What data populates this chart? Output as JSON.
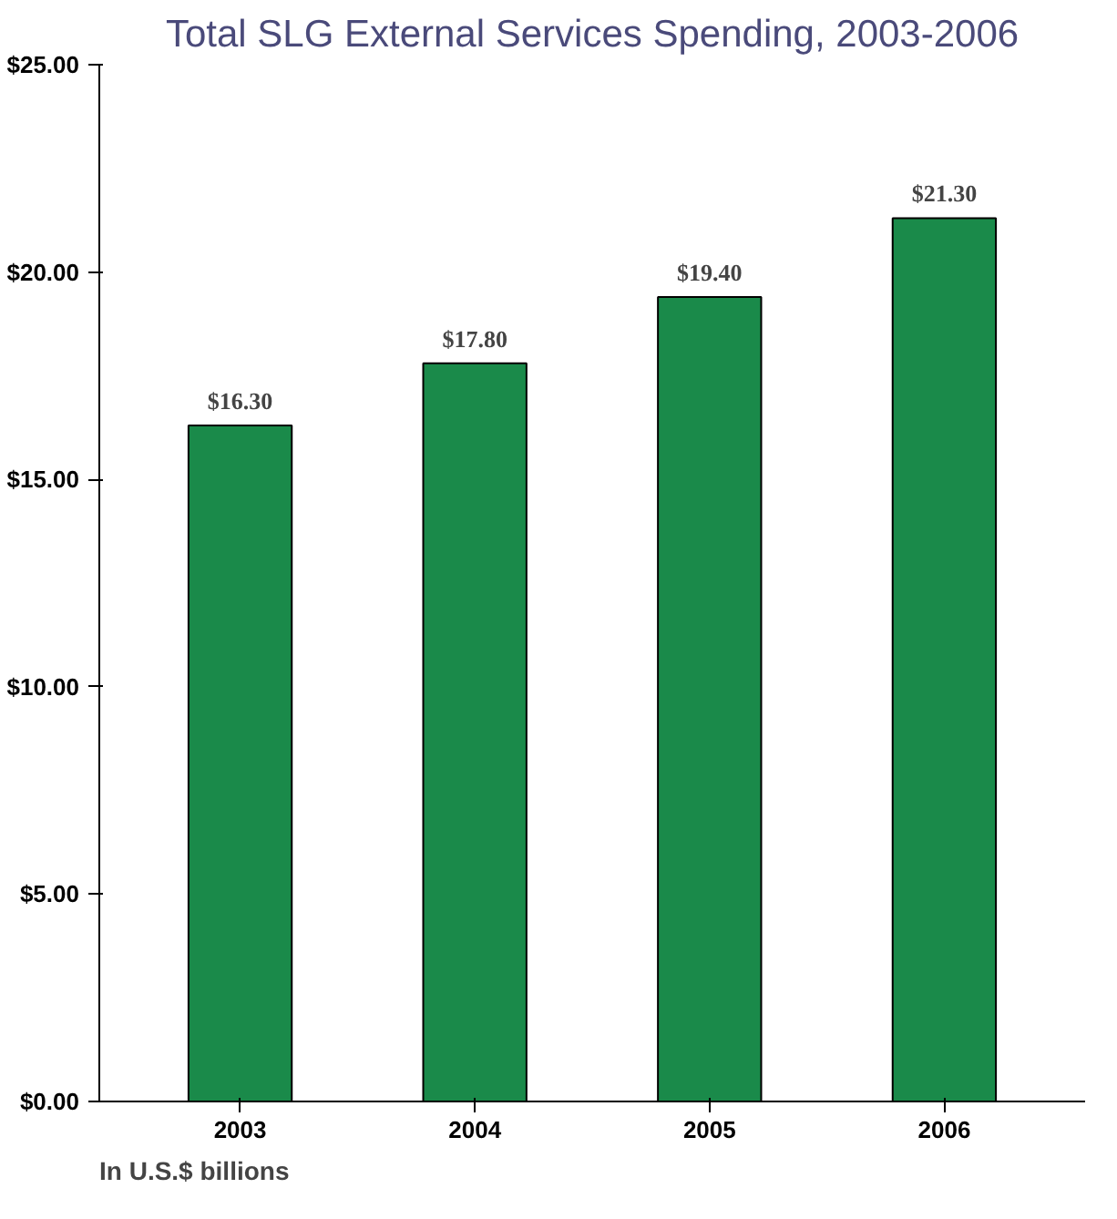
{
  "chart_data": {
    "type": "bar",
    "title": "Total SLG External Services Spending, 2003-2006",
    "categories": [
      "2003",
      "2004",
      "2005",
      "2006"
    ],
    "values": [
      16.3,
      17.8,
      19.4,
      21.3
    ],
    "value_labels": [
      "$16.30",
      "$17.80",
      "$19.40",
      "$21.30"
    ],
    "color": "#1a8a4a",
    "ylim": [
      0,
      25
    ],
    "yticks": [
      {
        "value": 0,
        "label": "$0.00"
      },
      {
        "value": 5,
        "label": "$5.00"
      },
      {
        "value": 10,
        "label": "$10.00"
      },
      {
        "value": 15,
        "label": "$15.00"
      },
      {
        "value": 20,
        "label": "$20.00"
      },
      {
        "value": 25,
        "label": "$25.00"
      }
    ],
    "grid": false,
    "annotations": [
      "In U.S.$ billions"
    ]
  }
}
